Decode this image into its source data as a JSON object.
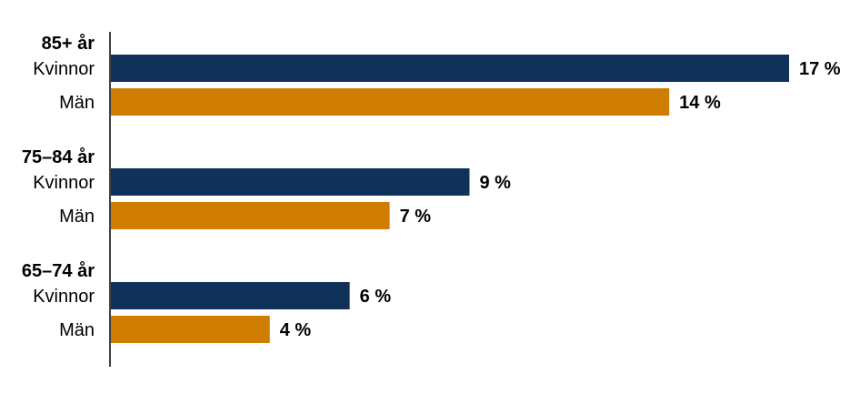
{
  "chart_data": {
    "type": "bar",
    "orientation": "horizontal",
    "unit": "%",
    "xlim": [
      0,
      17
    ],
    "colors": {
      "Kvinnor": "#10325a",
      "Män": "#cf7d00"
    },
    "groups": [
      {
        "label": "85+ år",
        "bars": [
          {
            "category": "Kvinnor",
            "value": 17,
            "value_label": "17 %"
          },
          {
            "category": "Män",
            "value": 14,
            "value_label": "14 %"
          }
        ]
      },
      {
        "label": "75–84 år",
        "bars": [
          {
            "category": "Kvinnor",
            "value": 9,
            "value_label": "9 %"
          },
          {
            "category": "Män",
            "value": 7,
            "value_label": "7 %"
          }
        ]
      },
      {
        "label": "65–74 år",
        "bars": [
          {
            "category": "Kvinnor",
            "value": 6,
            "value_label": "6 %"
          },
          {
            "category": "Män",
            "value": 4,
            "value_label": "4 %"
          }
        ]
      }
    ]
  }
}
